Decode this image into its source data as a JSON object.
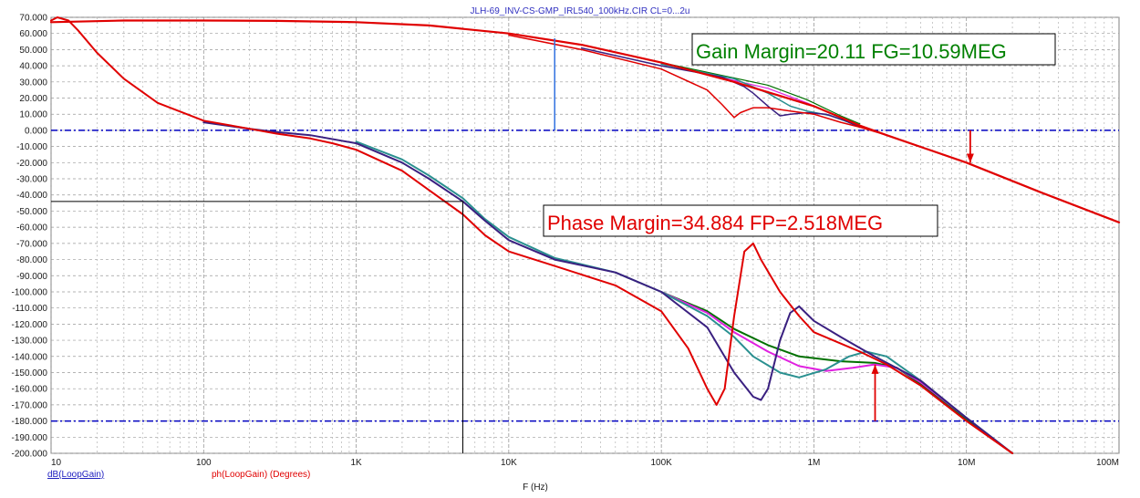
{
  "window_title": "JLH-69_INV-CS-GMP_IRL540_100kHz.CIR CL=0...2u",
  "chart_data": {
    "type": "line",
    "xscale": "log",
    "xlim": [
      10,
      100000000
    ],
    "ylim": [
      -200,
      70
    ],
    "grid": true,
    "xlabel": "F (Hz)",
    "y_ticks": [
      "70.000",
      "60.000",
      "50.000",
      "40.000",
      "30.000",
      "20.000",
      "10.000",
      "0.000",
      "-10.000",
      "-20.000",
      "-30.000",
      "-40.000",
      "-50.000",
      "-60.000",
      "-70.000",
      "-80.000",
      "-90.000",
      "-100.000",
      "-110.000",
      "-120.000",
      "-130.000",
      "-140.000",
      "-150.000",
      "-160.000",
      "-170.000",
      "-180.000",
      "-190.000",
      "-200.000"
    ],
    "x_ticks": [
      {
        "value": 10,
        "label": "10"
      },
      {
        "value": 100,
        "label": "100"
      },
      {
        "value": 1000,
        "label": "1K"
      },
      {
        "value": 10000,
        "label": "10K"
      },
      {
        "value": 100000,
        "label": "100K"
      },
      {
        "value": 1000000,
        "label": "1M"
      },
      {
        "value": 10000000,
        "label": "10M"
      },
      {
        "value": 100000000,
        "label": "100M"
      }
    ],
    "legend": [
      {
        "label": "dB(LoopGain)",
        "color": "#2020c0"
      },
      {
        "label": "ph(LoopGain) (Degrees)",
        "color": "#e00000"
      }
    ],
    "reference_lines": [
      {
        "y": 0,
        "color": "#0000c0"
      },
      {
        "y": -180,
        "color": "#0000c0"
      }
    ],
    "annotations": [
      {
        "text": "Gain Margin=20.11 FG=10.59MEG",
        "color": "#008000",
        "x": 10590000,
        "y_from": 0,
        "y_to": -20.11
      },
      {
        "text": "Phase Margin=34.884 FP=2.518MEG",
        "color": "#e00000",
        "x": 2518000,
        "y_from": -180,
        "y_to": -145.116
      }
    ],
    "cursor": {
      "x": 5000,
      "y": -44
    },
    "marker": {
      "x": 20000,
      "y_from": 0,
      "y_to": 57
    },
    "series": [
      {
        "kind": "gain",
        "color": "#e00000",
        "width": 2.2,
        "points": [
          [
            10,
            67
          ],
          [
            30,
            68
          ],
          [
            100,
            68
          ],
          [
            300,
            67.8
          ],
          [
            1000,
            67
          ],
          [
            3000,
            65
          ],
          [
            10000,
            60
          ],
          [
            30000,
            53
          ],
          [
            100000,
            42
          ],
          [
            300000,
            30
          ],
          [
            1000000,
            15
          ],
          [
            2000000,
            3
          ],
          [
            3000000,
            -3
          ],
          [
            10000000,
            -20
          ],
          [
            30000000,
            -38
          ],
          [
            100000000,
            -57
          ]
        ]
      },
      {
        "kind": "gain",
        "color": "#e00000",
        "width": 1.5,
        "points": [
          [
            10000,
            59
          ],
          [
            30000,
            50
          ],
          [
            100000,
            38
          ],
          [
            200000,
            25
          ],
          [
            250000,
            16
          ],
          [
            300000,
            8
          ],
          [
            330000,
            11
          ],
          [
            400000,
            14
          ],
          [
            500000,
            14
          ],
          [
            700000,
            12
          ],
          [
            1000000,
            10
          ],
          [
            1500000,
            5
          ],
          [
            2000000,
            2
          ],
          [
            3000000,
            -3
          ]
        ]
      },
      {
        "kind": "gain",
        "color": "#3a2080",
        "width": 1.5,
        "points": [
          [
            30000,
            51
          ],
          [
            100000,
            40
          ],
          [
            250000,
            33
          ],
          [
            350000,
            27
          ],
          [
            400000,
            23
          ],
          [
            500000,
            15
          ],
          [
            600000,
            9
          ],
          [
            700000,
            10
          ],
          [
            900000,
            11
          ],
          [
            1200000,
            10
          ],
          [
            1600000,
            6
          ],
          [
            2000000,
            2
          ]
        ]
      },
      {
        "kind": "gain",
        "color": "#2a9090",
        "width": 1.5,
        "points": [
          [
            100000,
            41
          ],
          [
            300000,
            32
          ],
          [
            500000,
            23
          ],
          [
            700000,
            15
          ],
          [
            900000,
            12
          ],
          [
            1300000,
            9
          ],
          [
            1800000,
            4
          ],
          [
            2200000,
            1
          ]
        ]
      },
      {
        "kind": "gain",
        "color": "#e020e0",
        "width": 1.2,
        "points": [
          [
            100000,
            41.5
          ],
          [
            500000,
            26
          ],
          [
            900000,
            17
          ],
          [
            1500000,
            8
          ],
          [
            2000000,
            3
          ]
        ]
      },
      {
        "kind": "gain",
        "color": "#007000",
        "width": 1.2,
        "points": [
          [
            100000,
            42
          ],
          [
            500000,
            28
          ],
          [
            900000,
            19
          ],
          [
            1500000,
            9
          ],
          [
            2000000,
            4
          ]
        ]
      },
      {
        "kind": "phase",
        "color": "#e00000",
        "width": 2,
        "points": [
          [
            10,
            68
          ],
          [
            11,
            70
          ],
          [
            13,
            68
          ],
          [
            15,
            62
          ],
          [
            20,
            48
          ],
          [
            30,
            32
          ],
          [
            50,
            17
          ],
          [
            100,
            6
          ],
          [
            200,
            1
          ],
          [
            300,
            -2
          ],
          [
            500,
            -5
          ],
          [
            700,
            -8
          ],
          [
            1000,
            -12
          ],
          [
            2000,
            -25
          ],
          [
            3000,
            -37
          ],
          [
            5000,
            -52
          ],
          [
            7000,
            -65
          ],
          [
            10000,
            -75
          ],
          [
            20000,
            -84
          ],
          [
            50000,
            -96
          ],
          [
            100000,
            -112
          ],
          [
            150000,
            -135
          ],
          [
            200000,
            -160
          ],
          [
            230000,
            -170
          ],
          [
            260000,
            -160
          ],
          [
            300000,
            -115
          ],
          [
            350000,
            -75
          ],
          [
            400000,
            -70
          ],
          [
            450000,
            -80
          ],
          [
            600000,
            -100
          ],
          [
            800000,
            -115
          ],
          [
            1000000,
            -125
          ],
          [
            2000000,
            -137
          ],
          [
            3000000,
            -145
          ],
          [
            5000000,
            -158
          ],
          [
            10000000,
            -180
          ],
          [
            20000000,
            -200
          ]
        ]
      },
      {
        "kind": "phase",
        "color": "#3a2080",
        "width": 2,
        "points": [
          [
            100,
            5
          ],
          [
            200,
            1
          ],
          [
            300,
            -1
          ],
          [
            500,
            -3
          ],
          [
            1000,
            -8
          ],
          [
            2000,
            -20
          ],
          [
            3000,
            -30
          ],
          [
            5000,
            -44
          ],
          [
            7000,
            -56
          ],
          [
            10000,
            -68
          ],
          [
            20000,
            -80
          ],
          [
            50000,
            -88
          ],
          [
            100000,
            -100
          ],
          [
            200000,
            -122
          ],
          [
            300000,
            -150
          ],
          [
            400000,
            -165
          ],
          [
            450000,
            -167
          ],
          [
            500000,
            -160
          ],
          [
            600000,
            -130
          ],
          [
            700000,
            -113
          ],
          [
            800000,
            -109
          ],
          [
            1000000,
            -118
          ],
          [
            1500000,
            -128
          ],
          [
            2500000,
            -140
          ],
          [
            5000000,
            -155
          ],
          [
            10000000,
            -178
          ],
          [
            20000000,
            -200
          ]
        ]
      },
      {
        "kind": "phase",
        "color": "#2a9090",
        "width": 2,
        "points": [
          [
            1000,
            -7
          ],
          [
            2000,
            -18
          ],
          [
            3000,
            -28
          ],
          [
            5000,
            -42
          ],
          [
            7000,
            -55
          ],
          [
            10000,
            -66
          ],
          [
            20000,
            -79
          ],
          [
            50000,
            -88
          ],
          [
            100000,
            -100
          ],
          [
            200000,
            -115
          ],
          [
            300000,
            -128
          ],
          [
            400000,
            -140
          ],
          [
            600000,
            -150
          ],
          [
            800000,
            -153
          ],
          [
            1200000,
            -148
          ],
          [
            1700000,
            -140
          ],
          [
            2200000,
            -137
          ],
          [
            3000000,
            -140
          ],
          [
            5000000,
            -155
          ],
          [
            10000000,
            -178
          ],
          [
            20000000,
            -200
          ]
        ]
      },
      {
        "kind": "phase",
        "color": "#e020e0",
        "width": 2,
        "points": [
          [
            100000,
            -100
          ],
          [
            200000,
            -113
          ],
          [
            300000,
            -125
          ],
          [
            500000,
            -137
          ],
          [
            800000,
            -146
          ],
          [
            1200000,
            -149
          ],
          [
            1800000,
            -147
          ],
          [
            2500000,
            -145
          ],
          [
            3500000,
            -147
          ],
          [
            5000000,
            -156
          ],
          [
            10000000,
            -178
          ]
        ]
      },
      {
        "kind": "phase",
        "color": "#007000",
        "width": 2,
        "points": [
          [
            100000,
            -100
          ],
          [
            200000,
            -112
          ],
          [
            300000,
            -123
          ],
          [
            500000,
            -133
          ],
          [
            800000,
            -140
          ],
          [
            1500000,
            -143
          ],
          [
            2500000,
            -144
          ],
          [
            3500000,
            -147
          ],
          [
            5000000,
            -157
          ],
          [
            10000000,
            -179
          ],
          [
            20000000,
            -200
          ]
        ]
      }
    ]
  }
}
